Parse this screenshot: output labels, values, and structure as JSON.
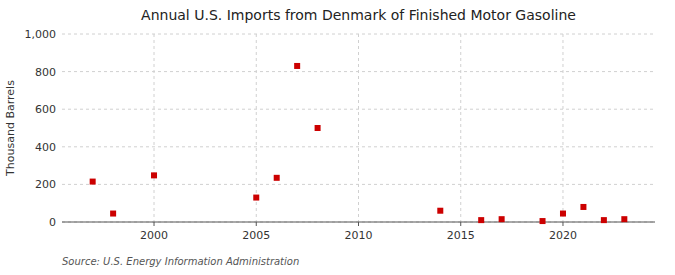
{
  "chart_data": {
    "type": "scatter",
    "title": "Annual U.S. Imports from Denmark of Finished Motor Gasoline",
    "y_label": "Thousand Barrels",
    "source": "Source: U.S. Energy Information Administration",
    "x": [
      1997,
      1998,
      2000,
      2005,
      2006,
      2007,
      2008,
      2014,
      2016,
      2017,
      2019,
      2020,
      2021,
      2022,
      2023
    ],
    "values": [
      215,
      45,
      248,
      130,
      235,
      830,
      500,
      60,
      10,
      15,
      5,
      45,
      80,
      10,
      15
    ],
    "color": "#cc0000",
    "marker": "square",
    "grid": true,
    "xlim": [
      1995.5,
      2024.5
    ],
    "ylim": [
      0,
      1000
    ],
    "xticks": [
      2000,
      2005,
      2010,
      2015,
      2020
    ],
    "yticks": [
      0,
      200,
      400,
      600,
      800,
      {
        "value": 1000,
        "label": "1,000"
      }
    ]
  }
}
